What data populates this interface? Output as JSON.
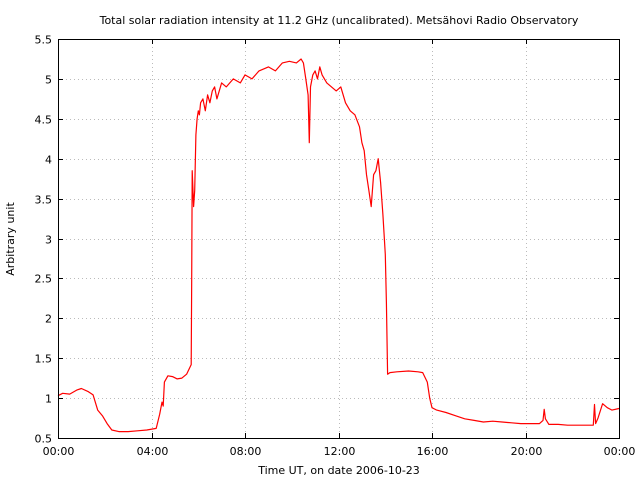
{
  "chart_data": {
    "type": "line",
    "title": "Total solar radiation intensity at 11.2 GHz (uncalibrated). Metsähovi Radio Observatory",
    "xlabel": "Time UT, on date 2006-10-23",
    "ylabel": "Arbitrary unit",
    "xlim": [
      0,
      24
    ],
    "ylim": [
      0.5,
      5.5
    ],
    "x_ticks": [
      {
        "value": 0,
        "label": "00:00"
      },
      {
        "value": 4,
        "label": "04:00"
      },
      {
        "value": 8,
        "label": "08:00"
      },
      {
        "value": 12,
        "label": "12:00"
      },
      {
        "value": 16,
        "label": "16:00"
      },
      {
        "value": 20,
        "label": "20:00"
      },
      {
        "value": 24,
        "label": "00:00"
      }
    ],
    "y_ticks": [
      {
        "value": 0.5,
        "label": "0.5"
      },
      {
        "value": 1,
        "label": "1"
      },
      {
        "value": 1.5,
        "label": "1.5"
      },
      {
        "value": 2,
        "label": "2"
      },
      {
        "value": 2.5,
        "label": "2.5"
      },
      {
        "value": 3,
        "label": "3"
      },
      {
        "value": 3.5,
        "label": "3.5"
      },
      {
        "value": 4,
        "label": "4"
      },
      {
        "value": 4.5,
        "label": "4.5"
      },
      {
        "value": 5,
        "label": "5"
      },
      {
        "value": 5.5,
        "label": "5.5"
      }
    ],
    "grid": true,
    "series": [
      {
        "color": "#ff0000",
        "x": [
          0.0,
          0.2,
          0.5,
          0.8,
          1.0,
          1.3,
          1.5,
          1.7,
          1.9,
          2.1,
          2.3,
          2.6,
          3.0,
          3.4,
          3.8,
          4.2,
          4.35,
          4.45,
          4.5,
          4.55,
          4.7,
          4.9,
          5.1,
          5.3,
          5.5,
          5.7,
          5.72,
          5.74,
          5.8,
          5.85,
          5.9,
          5.95,
          6.0,
          6.05,
          6.1,
          6.2,
          6.3,
          6.4,
          6.5,
          6.6,
          6.7,
          6.8,
          7.0,
          7.2,
          7.5,
          7.8,
          8.0,
          8.3,
          8.6,
          9.0,
          9.3,
          9.6,
          9.9,
          10.2,
          10.4,
          10.5,
          10.6,
          10.7,
          10.75,
          10.8,
          10.9,
          11.0,
          11.1,
          11.2,
          11.3,
          11.5,
          11.7,
          11.9,
          12.1,
          12.3,
          12.5,
          12.7,
          12.9,
          13.0,
          13.1,
          13.2,
          13.3,
          13.4,
          13.5,
          13.6,
          13.7,
          13.8,
          13.9,
          14.0,
          14.05,
          14.1,
          14.2,
          14.5,
          15.0,
          15.4,
          15.6,
          15.8,
          15.9,
          16.0,
          16.2,
          16.6,
          17.0,
          17.4,
          17.8,
          18.2,
          18.6,
          19.0,
          19.4,
          19.8,
          20.2,
          20.6,
          20.75,
          20.8,
          20.85,
          21.0,
          21.4,
          21.8,
          22.2,
          22.6,
          22.9,
          22.95,
          23.0,
          23.1,
          23.3,
          23.5,
          23.7,
          24.0
        ],
        "values": [
          1.03,
          1.06,
          1.05,
          1.1,
          1.12,
          1.08,
          1.04,
          0.85,
          0.78,
          0.68,
          0.6,
          0.58,
          0.58,
          0.59,
          0.6,
          0.62,
          0.8,
          0.95,
          0.9,
          1.2,
          1.28,
          1.27,
          1.24,
          1.25,
          1.3,
          1.42,
          2.5,
          3.85,
          3.4,
          3.6,
          4.3,
          4.5,
          4.6,
          4.55,
          4.7,
          4.75,
          4.6,
          4.8,
          4.7,
          4.85,
          4.9,
          4.75,
          4.95,
          4.9,
          5.0,
          4.95,
          5.05,
          5.0,
          5.1,
          5.15,
          5.1,
          5.2,
          5.22,
          5.2,
          5.25,
          5.2,
          5.0,
          4.8,
          4.2,
          4.9,
          5.05,
          5.1,
          5.0,
          5.15,
          5.05,
          4.95,
          4.9,
          4.85,
          4.9,
          4.7,
          4.6,
          4.55,
          4.4,
          4.2,
          4.1,
          3.8,
          3.6,
          3.4,
          3.8,
          3.85,
          4.0,
          3.7,
          3.3,
          2.8,
          2.2,
          1.3,
          1.32,
          1.33,
          1.34,
          1.33,
          1.32,
          1.2,
          1.0,
          0.88,
          0.85,
          0.82,
          0.78,
          0.74,
          0.72,
          0.7,
          0.71,
          0.7,
          0.69,
          0.68,
          0.68,
          0.68,
          0.72,
          0.86,
          0.74,
          0.67,
          0.67,
          0.66,
          0.66,
          0.66,
          0.66,
          0.92,
          0.68,
          0.75,
          0.93,
          0.88,
          0.85,
          0.87
        ]
      }
    ]
  }
}
